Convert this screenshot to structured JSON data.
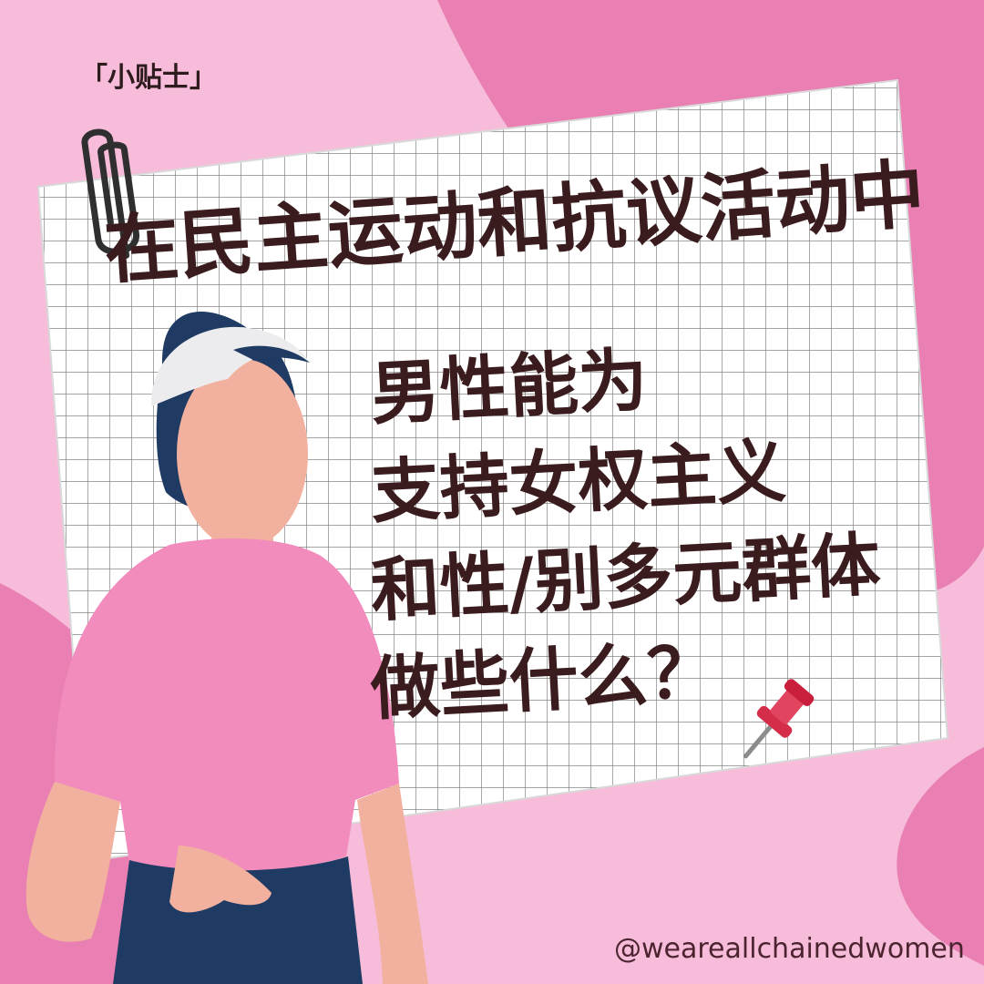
{
  "tag": "「小贴士」",
  "headline": "在民主运动和抗议活动中",
  "question_lines": [
    "男性能为",
    "支持女权主义",
    "和性/别多元群体",
    "做些什么？"
  ],
  "handle": "@weareallchainedwomen",
  "icons": [
    "paperclip-icon",
    "pushpin-icon"
  ],
  "colors": {
    "background_light": "#f7bcd9",
    "background_dark": "#e97fb3",
    "text": "#3a1c1f",
    "shirt": "#f28cbd",
    "pants": "#1f3b63",
    "hair": "#1f3b63",
    "skin": "#f2b09e"
  }
}
